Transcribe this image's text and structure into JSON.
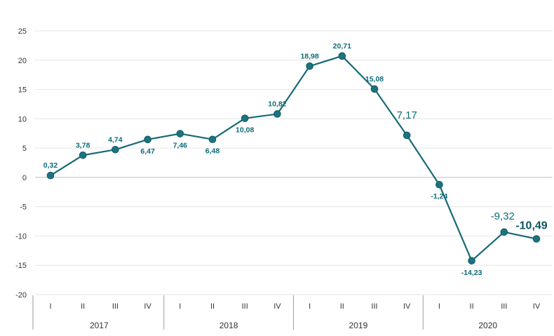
{
  "chart_data": {
    "type": "line",
    "title": "",
    "xlabel": "",
    "ylabel": "",
    "ylim": [
      -20,
      25
    ],
    "yticks": [
      25,
      20,
      15,
      10,
      5,
      0,
      -5,
      -10,
      -15,
      -20
    ],
    "grid": true,
    "legend": "none",
    "colors": {
      "line": "#166a76",
      "marker": "#1d7380",
      "label": "#0e6b7a"
    },
    "groups": [
      {
        "year": "2017",
        "quarters": [
          "I",
          "II",
          "III",
          "IV"
        ]
      },
      {
        "year": "2018",
        "quarters": [
          "I",
          "II",
          "III",
          "IV"
        ]
      },
      {
        "year": "2019",
        "quarters": [
          "I",
          "II",
          "III",
          "IV"
        ]
      },
      {
        "year": "2020",
        "quarters": [
          "I",
          "II",
          "III",
          "IV"
        ]
      }
    ],
    "values": [
      0.32,
      3.78,
      4.74,
      6.47,
      7.46,
      6.48,
      10.08,
      10.82,
      18.98,
      20.71,
      15.08,
      7.17,
      -1.24,
      -14.23,
      -9.32,
      -10.49
    ],
    "labels": [
      "0,32",
      "3,78",
      "4,74",
      "6,47",
      "7,46",
      "6,48",
      "10,08",
      "10,82",
      "18,98",
      "20,71",
      "15,08",
      "7,17",
      "-1,24",
      "-14,23",
      "-9,32",
      "-10,49"
    ]
  }
}
